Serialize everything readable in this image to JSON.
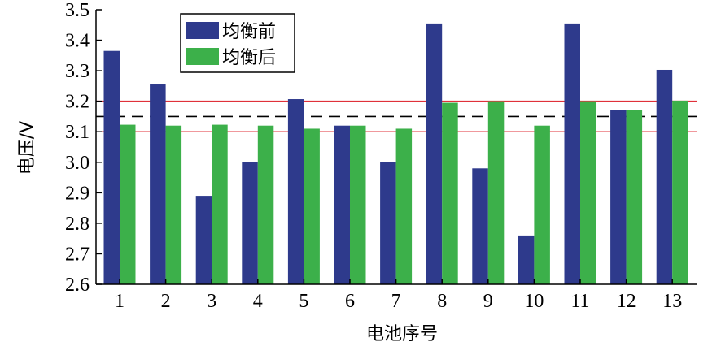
{
  "chart_data": {
    "type": "bar",
    "title": "",
    "xlabel": "电池序号",
    "ylabel": "电压/V",
    "categories": [
      "1",
      "2",
      "3",
      "4",
      "5",
      "6",
      "7",
      "8",
      "9",
      "10",
      "11",
      "12",
      "13"
    ],
    "series": [
      {
        "name": "均衡前",
        "color": "#2e3a8c",
        "values": [
          3.365,
          3.255,
          2.89,
          3.0,
          3.207,
          3.12,
          3.0,
          3.455,
          2.98,
          2.76,
          3.455,
          3.17,
          3.303
        ]
      },
      {
        "name": "均衡后",
        "color": "#3cb04a",
        "values": [
          3.123,
          3.12,
          3.123,
          3.12,
          3.11,
          3.12,
          3.11,
          3.195,
          3.2,
          3.12,
          3.2,
          3.17,
          3.202
        ]
      }
    ],
    "ylim": [
      2.6,
      3.5
    ],
    "yticks": [
      "2.6",
      "2.7",
      "2.8",
      "2.9",
      "3.0",
      "3.1",
      "3.2",
      "3.3",
      "3.4",
      "3.5"
    ],
    "reference_lines": [
      {
        "value": 3.2,
        "style": "solid",
        "color": "#e0313a"
      },
      {
        "value": 3.15,
        "style": "dashed",
        "color": "#000000"
      },
      {
        "value": 3.1,
        "style": "solid",
        "color": "#e0313a"
      }
    ],
    "legend_position": "top-left",
    "grid": false
  }
}
